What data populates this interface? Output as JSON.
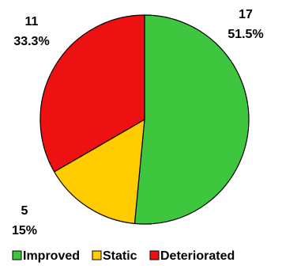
{
  "chart_data": {
    "type": "pie",
    "slices": [
      {
        "label": "Improved",
        "value": 17,
        "percent_label": "51.5%",
        "color": "#3ec63e"
      },
      {
        "label": "Static",
        "value": 5,
        "percent_label": "15%",
        "color": "#ffcc00"
      },
      {
        "label": "Deteriorated",
        "value": 11,
        "percent_label": "33.3%",
        "color": "#ee1111"
      }
    ],
    "legend_position": "bottom"
  }
}
